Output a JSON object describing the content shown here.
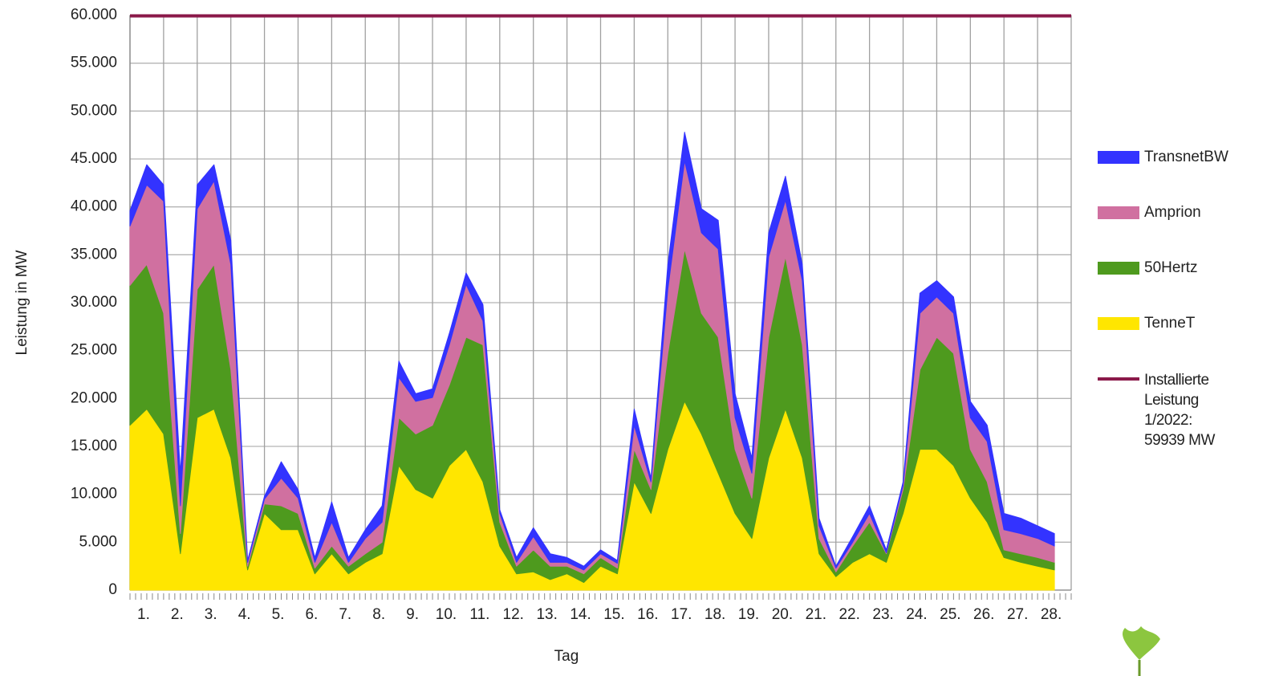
{
  "chart_data": {
    "type": "area",
    "stacked": true,
    "y_label": "Leistung in MW",
    "x_label": "Tag",
    "categories": [
      null,
      "1.",
      null,
      "2.",
      null,
      "3.",
      null,
      "4.",
      null,
      "5.",
      null,
      "6.",
      null,
      "7.",
      null,
      "8.",
      null,
      "9.",
      null,
      "10.",
      null,
      "11.",
      null,
      "12.",
      null,
      "13.",
      null,
      "14.",
      null,
      "15.",
      null,
      "16.",
      null,
      "17.",
      null,
      "18.",
      null,
      "19.",
      null,
      "20.",
      null,
      "21.",
      null,
      "22.",
      null,
      "23.",
      null,
      "24.",
      null,
      "25.",
      null,
      "26.",
      null,
      "27.",
      null,
      "28."
    ],
    "series": [
      {
        "name": "TenneT",
        "color": "#ffe600",
        "values": [
          17200,
          18900,
          16300,
          3800,
          18000,
          18900,
          13800,
          2100,
          8000,
          6300,
          6300,
          1700,
          3800,
          1700,
          2900,
          3800,
          13000,
          10500,
          9600,
          13000,
          14700,
          11300,
          4600,
          1700,
          1900,
          1100,
          1700,
          800,
          2500,
          1700,
          11300,
          8000,
          14700,
          19700,
          16300,
          12200,
          8000,
          5400,
          13800,
          18900,
          13800,
          3800,
          1400,
          2900,
          3800,
          2900,
          8000,
          14700,
          14700,
          13000,
          9600,
          7100,
          3400,
          2900,
          2500,
          2100
        ]
      },
      {
        "name": "50Hertz",
        "color": "#4e9a1e",
        "values": [
          14600,
          15100,
          12600,
          2100,
          13400,
          15100,
          9200,
          400,
          1000,
          2500,
          1700,
          600,
          800,
          800,
          900,
          1200,
          5000,
          5800,
          7600,
          8400,
          11700,
          14300,
          2500,
          800,
          2300,
          1400,
          800,
          900,
          900,
          600,
          3400,
          2500,
          10000,
          15900,
          12600,
          14200,
          6700,
          4200,
          12600,
          15900,
          11800,
          1600,
          500,
          1700,
          3300,
          900,
          2500,
          8300,
          11700,
          11700,
          5100,
          4200,
          800,
          900,
          900,
          800
        ]
      },
      {
        "name": "Amprion",
        "color": "#d070a0",
        "values": [
          6200,
          8300,
          11700,
          2900,
          8400,
          8700,
          11000,
          400,
          500,
          2900,
          1600,
          600,
          2500,
          400,
          1600,
          2100,
          4200,
          3400,
          2900,
          4200,
          5500,
          2500,
          900,
          400,
          1400,
          400,
          400,
          400,
          400,
          500,
          2500,
          800,
          6700,
          9200,
          8400,
          9200,
          3300,
          2600,
          8400,
          5900,
          6700,
          1300,
          400,
          400,
          900,
          100,
          400,
          5900,
          4200,
          4200,
          3300,
          4200,
          2100,
          2100,
          2000,
          1700
        ]
      },
      {
        "name": "TransnetBW",
        "color": "#3333ff",
        "values": [
          1600,
          2100,
          1700,
          3400,
          2500,
          1700,
          2500,
          200,
          300,
          1700,
          900,
          500,
          2100,
          500,
          900,
          1700,
          1700,
          800,
          900,
          1200,
          1200,
          1700,
          400,
          500,
          900,
          900,
          500,
          400,
          400,
          300,
          1700,
          400,
          2600,
          3000,
          2500,
          3000,
          2500,
          1600,
          2500,
          2500,
          1700,
          800,
          200,
          600,
          800,
          300,
          400,
          2100,
          1700,
          1700,
          1700,
          1700,
          1700,
          1600,
          1300,
          1300
        ]
      }
    ],
    "installed": {
      "name": "Installierte Leistung 1/2022: 59939 MW",
      "value": 59939,
      "color": "#8b1a4a"
    },
    "ylim": [
      0,
      60000
    ],
    "yticks": [
      0,
      {
        "value": 5000,
        "label": "5.000"
      },
      {
        "value": 10000,
        "label": "10.000"
      },
      {
        "value": 15000,
        "label": "15.000"
      },
      {
        "value": 20000,
        "label": "20.000"
      },
      {
        "value": 25000,
        "label": "25.000"
      },
      {
        "value": 30000,
        "label": "30.000"
      },
      {
        "value": 35000,
        "label": "35.000"
      },
      {
        "value": 40000,
        "label": "40.000"
      },
      {
        "value": 45000,
        "label": "45.000"
      },
      {
        "value": 50000,
        "label": "50.000"
      },
      {
        "value": 55000,
        "label": "55.000"
      },
      {
        "value": 60000,
        "label": "60.000"
      }
    ],
    "grid": true
  }
}
